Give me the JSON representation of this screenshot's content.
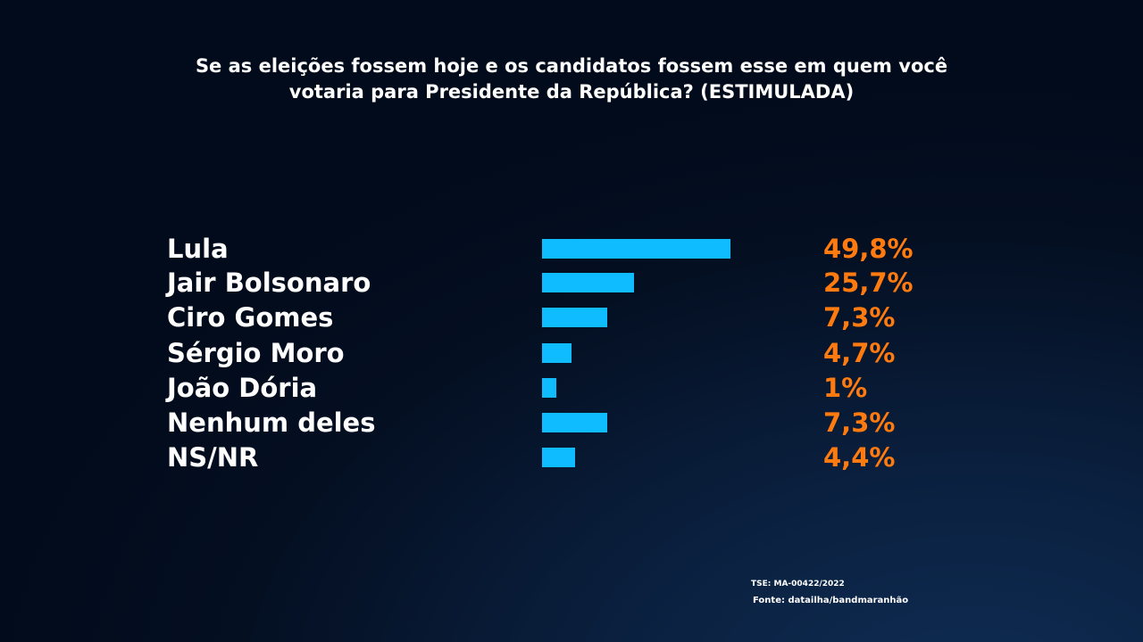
{
  "chart_data": {
    "type": "bar",
    "orientation": "horizontal",
    "title": "Se as eleições fossem hoje e os candidatos fossem esse em quem você votaria para Presidente da República? (ESTIMULADA)",
    "title_lines": [
      "Se as eleições fossem hoje e os candidatos fossem esse em quem você",
      "votaria para Presidente da República? (ESTIMULADA)"
    ],
    "categories": [
      "Lula",
      "Jair Bolsonaro",
      "Ciro Gomes",
      "Sérgio Moro",
      "João Dória",
      "Nenhum deles",
      "NS/NR"
    ],
    "values": [
      49.8,
      25.7,
      7.3,
      4.7,
      1,
      7.3,
      4.4
    ],
    "value_labels": [
      "49,8%",
      "25,7%",
      "7,3%",
      "4,7%",
      "1%",
      "7,3%",
      "4,4%"
    ],
    "bar_fill_fraction": [
      1.0,
      0.49,
      0.345,
      0.157,
      0.076,
      0.345,
      0.175
    ],
    "unit": "%",
    "grid": false,
    "colors": {
      "bar": "#0fbcff",
      "value": "#ff7b0f",
      "label": "#ffffff"
    }
  },
  "footer": {
    "registration": "TSE: MA-00422/2022",
    "source": "Fonte: datailha/bandmaranhão"
  }
}
